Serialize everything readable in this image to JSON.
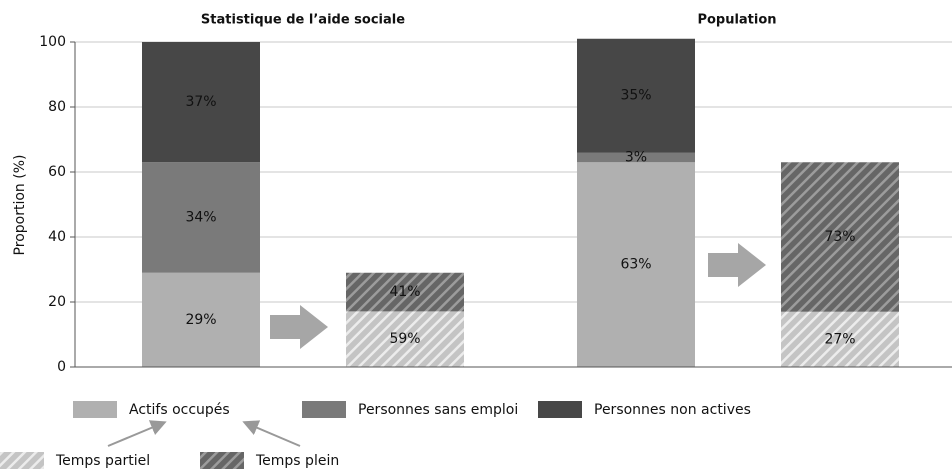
{
  "chart_data": {
    "type": "bar",
    "categories": [
      "Statistique de l’aide sociale",
      "Population"
    ],
    "ylabel": "Proportion (%)",
    "ylim": [
      0,
      100
    ],
    "yticks": [
      0,
      20,
      40,
      60,
      80,
      100
    ],
    "grid": true,
    "series": [
      {
        "name": "Actifs occupés",
        "color": "#b0b0b0",
        "values": [
          29,
          63
        ],
        "value_labels": [
          "29%",
          "63%"
        ]
      },
      {
        "name": "Personnes sans emploi",
        "color": "#7a7a7a",
        "values": [
          34,
          3
        ],
        "value_labels": [
          "34%",
          "3%"
        ]
      },
      {
        "name": "Personnes non actives",
        "color": "#474747",
        "values": [
          37,
          35
        ],
        "value_labels": [
          "37%",
          "35%"
        ]
      }
    ],
    "breakdown": {
      "series": [
        {
          "name": "Temps partiel",
          "color": "#c4c4c4",
          "values": [
            59,
            27
          ],
          "value_labels": [
            "59%",
            "27%"
          ]
        },
        {
          "name": "Temps plein",
          "color": "#666666",
          "values": [
            41,
            73
          ],
          "value_labels": [
            "41%",
            "73%"
          ]
        }
      ]
    }
  }
}
